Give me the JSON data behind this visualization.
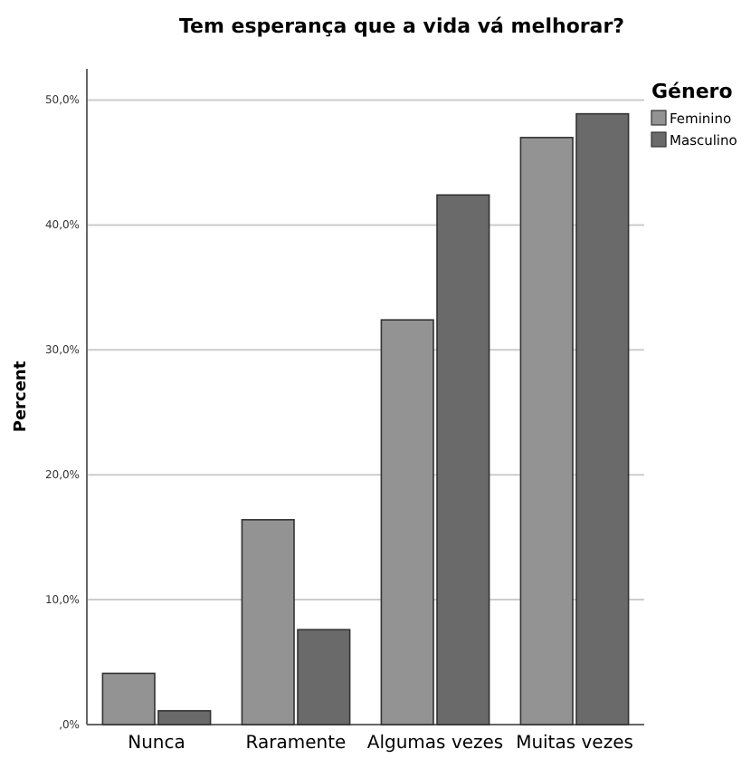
{
  "chart_data": {
    "type": "bar",
    "title": "Tem esperança que a vida vá melhorar?",
    "ylabel": "Percent",
    "legend_title": "Género",
    "legend": "right",
    "categories": [
      "Nunca",
      "Raramente",
      "Algumas vezes",
      "Muitas vezes"
    ],
    "series": [
      {
        "name": "Feminino",
        "color": "#939393",
        "values": [
          4.1,
          16.4,
          32.4,
          47.0
        ]
      },
      {
        "name": "Masculino",
        "color": "#6a6a6a",
        "values": [
          1.1,
          7.6,
          42.4,
          48.9
        ]
      }
    ],
    "ylim": [
      0,
      52.5
    ],
    "yticks": [
      {
        "value": 0,
        "label": ",0%"
      },
      {
        "value": 10,
        "label": "10,0%"
      },
      {
        "value": 20,
        "label": "20,0%"
      },
      {
        "value": 30,
        "label": "30,0%"
      },
      {
        "value": 40,
        "label": "40,0%"
      },
      {
        "value": 50,
        "label": "50,0%"
      }
    ],
    "grid": "y"
  }
}
